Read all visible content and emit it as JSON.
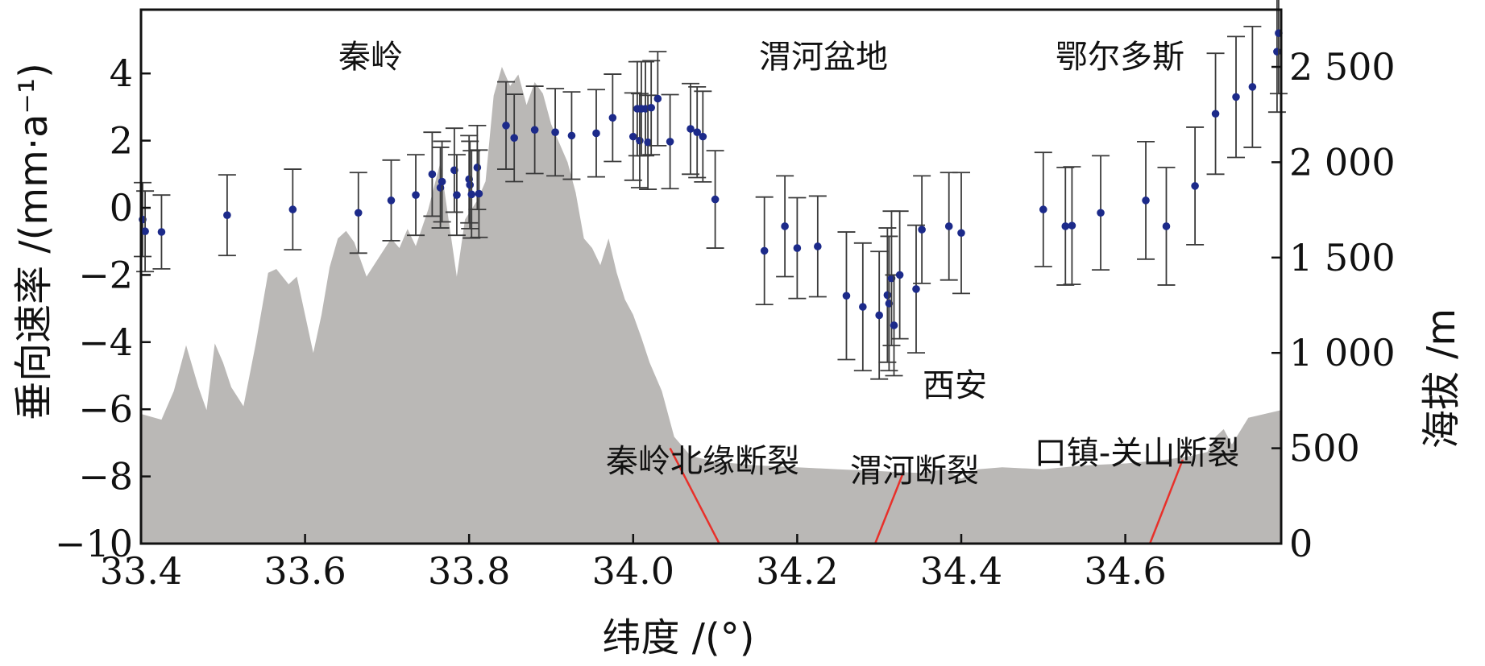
{
  "chart_data": {
    "type": "scatter",
    "xlabel": "纬度 /(°)",
    "ylabel": "垂向速率 /(mm·a⁻¹)",
    "y2label": "海拔 /m",
    "xlim": [
      33.4,
      34.79
    ],
    "ylim": [
      -10,
      5.9
    ],
    "y2lim": [
      0,
      2800
    ],
    "x_ticks": [
      {
        "value": 33.4,
        "label": "33.4"
      },
      {
        "value": 33.6,
        "label": "33.6"
      },
      {
        "value": 33.8,
        "label": "33.8"
      },
      {
        "value": 34.0,
        "label": "34.0"
      },
      {
        "value": 34.2,
        "label": "34.2"
      },
      {
        "value": 34.4,
        "label": "34.4"
      },
      {
        "value": 34.6,
        "label": "34.6"
      }
    ],
    "y_ticks": [
      {
        "value": 4,
        "label": "4"
      },
      {
        "value": 2,
        "label": "2"
      },
      {
        "value": 0,
        "label": "0"
      },
      {
        "value": -2,
        "label": "−2"
      },
      {
        "value": -4,
        "label": "−4"
      },
      {
        "value": -6,
        "label": "−6"
      },
      {
        "value": -8,
        "label": "−8"
      },
      {
        "value": -10,
        "label": "−10"
      }
    ],
    "y2_ticks": [
      {
        "value": 2500,
        "label": "2 500"
      },
      {
        "value": 2000,
        "label": "2 000"
      },
      {
        "value": 1500,
        "label": "1 500"
      },
      {
        "value": 1000,
        "label": "1 000"
      },
      {
        "value": 500,
        "label": "500"
      },
      {
        "value": 0,
        "label": "0"
      }
    ],
    "annotations": [
      {
        "text": "秦岭",
        "x": 33.62,
        "y": 4.4
      },
      {
        "text": "渭河盆地",
        "x": 34.3,
        "y": 4.4
      },
      {
        "text": "鄂尔多斯",
        "x": 34.63,
        "y": 4.4
      },
      {
        "text": "西安",
        "x": 34.39,
        "y": -5.5
      },
      {
        "text": "秦岭北缘断裂",
        "x": 33.99,
        "y": -7.5
      },
      {
        "text": "渭河断裂",
        "x": 34.34,
        "y": -7.7
      },
      {
        "text": "口镇-关山断裂",
        "x": 34.62,
        "y": -7.5
      }
    ],
    "colors": {
      "points": "#1c2a8a",
      "errorbars": "#3a3a3a",
      "terrain": "#bab8b6",
      "faults": "#e8302a"
    },
    "series": [
      {
        "type": "scatter_errorbar",
        "points": [
          {
            "x": 33.402,
            "y": -0.35,
            "err": 1.1
          },
          {
            "x": 33.405,
            "y": -0.7,
            "err": 1.2
          },
          {
            "x": 33.425,
            "y": -0.72,
            "err": 1.1
          },
          {
            "x": 33.505,
            "y": -0.22,
            "err": 1.2
          },
          {
            "x": 33.585,
            "y": -0.05,
            "err": 1.2
          },
          {
            "x": 33.665,
            "y": -0.15,
            "err": 1.2
          },
          {
            "x": 33.705,
            "y": 0.22,
            "err": 1.2
          },
          {
            "x": 33.735,
            "y": 0.38,
            "err": 1.2
          },
          {
            "x": 33.755,
            "y": 1.0,
            "err": 1.25
          },
          {
            "x": 33.765,
            "y": 0.6,
            "err": 1.2
          },
          {
            "x": 33.767,
            "y": 0.78,
            "err": 1.2
          },
          {
            "x": 33.782,
            "y": 1.12,
            "err": 1.25
          },
          {
            "x": 33.785,
            "y": 0.38,
            "err": 1.2
          },
          {
            "x": 33.8,
            "y": 0.85,
            "err": 1.3
          },
          {
            "x": 33.801,
            "y": 0.68,
            "err": 1.3
          },
          {
            "x": 33.803,
            "y": 0.4,
            "err": 1.3
          },
          {
            "x": 33.81,
            "y": 1.2,
            "err": 1.25
          },
          {
            "x": 33.812,
            "y": 0.42,
            "err": 1.3
          },
          {
            "x": 33.845,
            "y": 2.45,
            "err": 1.3
          },
          {
            "x": 33.855,
            "y": 2.08,
            "err": 1.3
          },
          {
            "x": 33.88,
            "y": 2.32,
            "err": 1.3
          },
          {
            "x": 33.905,
            "y": 2.25,
            "err": 1.3
          },
          {
            "x": 33.925,
            "y": 2.15,
            "err": 1.3
          },
          {
            "x": 33.955,
            "y": 2.22,
            "err": 1.3
          },
          {
            "x": 33.975,
            "y": 2.68,
            "err": 1.3
          },
          {
            "x": 34.0,
            "y": 2.12,
            "err": 1.3
          },
          {
            "x": 34.005,
            "y": 2.95,
            "err": 1.4
          },
          {
            "x": 34.008,
            "y": 2.0,
            "err": 1.4
          },
          {
            "x": 34.01,
            "y": 2.95,
            "err": 1.4
          },
          {
            "x": 34.015,
            "y": 2.95,
            "err": 1.4
          },
          {
            "x": 34.018,
            "y": 1.95,
            "err": 1.4
          },
          {
            "x": 34.022,
            "y": 2.98,
            "err": 1.4
          },
          {
            "x": 34.03,
            "y": 3.25,
            "err": 1.4
          },
          {
            "x": 34.045,
            "y": 1.97,
            "err": 1.4
          },
          {
            "x": 34.07,
            "y": 2.35,
            "err": 1.35
          },
          {
            "x": 34.078,
            "y": 2.25,
            "err": 1.35
          },
          {
            "x": 34.085,
            "y": 2.12,
            "err": 1.35
          },
          {
            "x": 34.1,
            "y": 0.25,
            "err": 1.45
          },
          {
            "x": 34.16,
            "y": -1.28,
            "err": 1.6
          },
          {
            "x": 34.185,
            "y": -0.55,
            "err": 1.5
          },
          {
            "x": 34.2,
            "y": -1.2,
            "err": 1.5
          },
          {
            "x": 34.225,
            "y": -1.15,
            "err": 1.5
          },
          {
            "x": 34.26,
            "y": -2.62,
            "err": 1.9
          },
          {
            "x": 34.28,
            "y": -2.95,
            "err": 1.9
          },
          {
            "x": 34.3,
            "y": -3.2,
            "err": 1.9
          },
          {
            "x": 34.31,
            "y": -2.6,
            "err": 2.0
          },
          {
            "x": 34.312,
            "y": -2.85,
            "err": 2.0
          },
          {
            "x": 34.315,
            "y": -2.1,
            "err": 2.0
          },
          {
            "x": 34.318,
            "y": -3.5,
            "err": 1.5
          },
          {
            "x": 34.325,
            "y": -2.0,
            "err": 1.9
          },
          {
            "x": 34.345,
            "y": -2.42,
            "err": 1.9
          },
          {
            "x": 34.352,
            "y": -0.65,
            "err": 1.6
          },
          {
            "x": 34.385,
            "y": -0.55,
            "err": 1.6
          },
          {
            "x": 34.4,
            "y": -0.75,
            "err": 1.8
          },
          {
            "x": 34.5,
            "y": -0.05,
            "err": 1.7
          },
          {
            "x": 34.527,
            "y": -0.55,
            "err": 1.75
          },
          {
            "x": 34.535,
            "y": -0.53,
            "err": 1.75
          },
          {
            "x": 34.57,
            "y": -0.15,
            "err": 1.7
          },
          {
            "x": 34.625,
            "y": 0.22,
            "err": 1.75
          },
          {
            "x": 34.65,
            "y": -0.55,
            "err": 1.75
          },
          {
            "x": 34.685,
            "y": 0.65,
            "err": 1.75
          },
          {
            "x": 34.71,
            "y": 2.8,
            "err": 1.8
          },
          {
            "x": 34.735,
            "y": 3.3,
            "err": 1.8
          },
          {
            "x": 34.755,
            "y": 3.6,
            "err": 1.8
          },
          {
            "x": 34.785,
            "y": 4.65,
            "err": 1.8
          },
          {
            "x": 34.787,
            "y": 5.2,
            "err": 1.8
          }
        ]
      },
      {
        "type": "area",
        "name": "",
        "axis": "y2",
        "x": [
          33.4,
          33.425,
          33.44,
          33.455,
          33.47,
          33.48,
          33.49,
          33.5,
          33.51,
          33.525,
          33.54,
          33.555,
          33.565,
          33.58,
          33.59,
          33.6,
          33.61,
          33.62,
          33.63,
          33.64,
          33.65,
          33.66,
          33.675,
          33.69,
          33.705,
          33.715,
          33.725,
          33.735,
          33.75,
          33.765,
          33.775,
          33.785,
          33.795,
          33.81,
          33.82,
          33.83,
          33.84,
          33.85,
          33.86,
          33.87,
          33.88,
          33.89,
          33.9,
          33.91,
          33.92,
          33.93,
          33.94,
          33.95,
          33.96,
          33.97,
          33.98,
          33.99,
          34.0,
          34.01,
          34.02,
          34.035,
          34.05,
          34.07,
          34.1,
          34.15,
          34.2,
          34.25,
          34.3,
          34.35,
          34.38,
          34.4,
          34.42,
          34.45,
          34.5,
          34.55,
          34.6,
          34.65,
          34.68,
          34.7,
          34.71,
          34.72,
          34.73,
          34.75,
          34.79
        ],
        "values": [
          680,
          650,
          800,
          1040,
          820,
          700,
          1050,
          950,
          820,
          720,
          1050,
          1420,
          1440,
          1360,
          1400,
          1200,
          1000,
          1200,
          1450,
          1600,
          1640,
          1580,
          1400,
          1500,
          1600,
          1550,
          1650,
          1560,
          1750,
          2000,
          1700,
          1400,
          1700,
          1800,
          1900,
          2350,
          2500,
          2400,
          2460,
          2300,
          2420,
          2360,
          2200,
          2100,
          2000,
          1840,
          1600,
          1550,
          1460,
          1600,
          1420,
          1280,
          1200,
          1080,
          950,
          800,
          560,
          460,
          430,
          410,
          400,
          390,
          380,
          370,
          390,
          340,
          390,
          400,
          390,
          410,
          420,
          440,
          460,
          480,
          560,
          600,
          520,
          660,
          700
        ]
      }
    ],
    "fault_lines": [
      {
        "x1": 34.045,
        "y1": 500,
        "x2": 34.105,
        "y2": 0
      },
      {
        "x1": 34.33,
        "y1": 380,
        "x2": 34.295,
        "y2": 0
      },
      {
        "x1": 34.67,
        "y1": 440,
        "x2": 34.63,
        "y2": 0
      }
    ]
  }
}
